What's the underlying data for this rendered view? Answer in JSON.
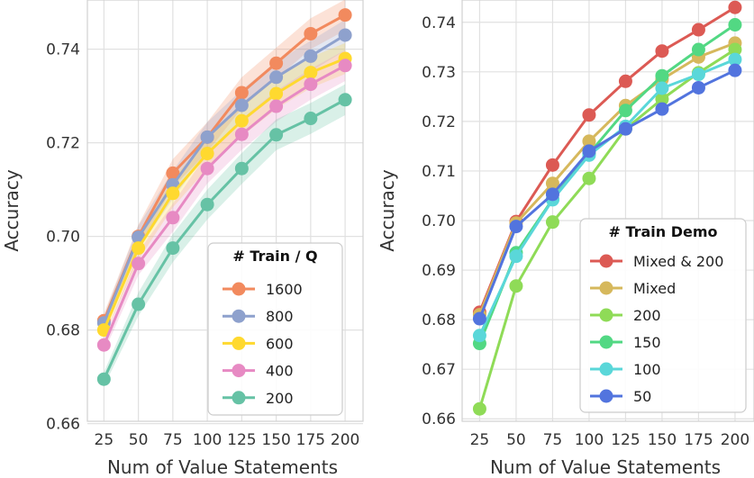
{
  "chart_data": [
    {
      "type": "line",
      "title": "",
      "xlabel": "Num of Value Statements",
      "ylabel": "Accuracy",
      "categories": [
        25,
        50,
        75,
        100,
        125,
        150,
        175,
        200
      ],
      "xlim": [
        13,
        213
      ],
      "ylim": [
        0.6605,
        0.7505
      ],
      "yticks": [
        0.66,
        0.68,
        0.7,
        0.72,
        0.74
      ],
      "ytick_labels": [
        "0.66",
        "0.68",
        "0.70",
        "0.72",
        "0.74"
      ],
      "xtick_labels": [
        "25",
        "50",
        "75",
        "100",
        "125",
        "150",
        "175",
        "200"
      ],
      "legend_title": "# Train / Q",
      "legend_position": "lower-right",
      "confidence_band": true,
      "series": [
        {
          "name": "1600",
          "color": "#f28a5e",
          "values": [
            0.682,
            0.7,
            0.7135,
            0.7212,
            0.7307,
            0.737,
            0.7433,
            0.7473
          ],
          "band": [
            0.0015,
            0.0025,
            0.003,
            0.0032,
            0.0033,
            0.0033,
            0.0033,
            0.0033
          ]
        },
        {
          "name": "800",
          "color": "#8ea1cd",
          "values": [
            0.6815,
            0.6998,
            0.711,
            0.7212,
            0.728,
            0.734,
            0.7385,
            0.743
          ],
          "band": [
            0.0015,
            0.0025,
            0.003,
            0.0032,
            0.0033,
            0.0033,
            0.0033,
            0.0033
          ]
        },
        {
          "name": "600",
          "color": "#ffd92f",
          "values": [
            0.68,
            0.6975,
            0.7092,
            0.7177,
            0.7247,
            0.7305,
            0.735,
            0.738
          ],
          "band": [
            0.0015,
            0.0025,
            0.003,
            0.0032,
            0.0033,
            0.0033,
            0.0033,
            0.0033
          ]
        },
        {
          "name": "400",
          "color": "#e78ac3",
          "values": [
            0.6768,
            0.6942,
            0.704,
            0.7145,
            0.7218,
            0.7278,
            0.7325,
            0.7365
          ],
          "band": [
            0.0015,
            0.0025,
            0.003,
            0.0032,
            0.0033,
            0.0033,
            0.0033,
            0.0033
          ]
        },
        {
          "name": "200",
          "color": "#66c2a5",
          "values": [
            0.6695,
            0.6855,
            0.6975,
            0.7068,
            0.7145,
            0.7217,
            0.7252,
            0.7292
          ],
          "band": [
            0.0015,
            0.0025,
            0.003,
            0.0032,
            0.0033,
            0.0033,
            0.0033,
            0.0033
          ]
        }
      ]
    },
    {
      "type": "line",
      "title": "",
      "xlabel": "Num of Value Statements",
      "ylabel": "Accuracy",
      "categories": [
        25,
        50,
        75,
        100,
        125,
        150,
        175,
        200
      ],
      "xlim": [
        13,
        213
      ],
      "ylim": [
        0.6595,
        0.7445
      ],
      "yticks": [
        0.66,
        0.67,
        0.68,
        0.69,
        0.7,
        0.71,
        0.72,
        0.73,
        0.74
      ],
      "ytick_labels": [
        "0.66",
        "0.67",
        "0.68",
        "0.69",
        "0.70",
        "0.71",
        "0.72",
        "0.73",
        "0.74"
      ],
      "xtick_labels": [
        "25",
        "50",
        "75",
        "100",
        "125",
        "150",
        "175",
        "200"
      ],
      "legend_title": "# Train Demo",
      "legend_position": "lower-right",
      "confidence_band": false,
      "series": [
        {
          "name": "Mixed & 200",
          "color": "#dc5a54",
          "values": [
            0.6815,
            0.6998,
            0.7112,
            0.7213,
            0.7281,
            0.7342,
            0.7385,
            0.743
          ]
        },
        {
          "name": "Mixed",
          "color": "#d6b85c",
          "values": [
            0.681,
            0.6995,
            0.7075,
            0.716,
            0.7232,
            0.7285,
            0.733,
            0.7358
          ]
        },
        {
          "name": "200",
          "color": "#8fdb57",
          "values": [
            0.662,
            0.6868,
            0.6997,
            0.7085,
            0.7185,
            0.7245,
            0.7298,
            0.7345
          ]
        },
        {
          "name": "150",
          "color": "#52d883",
          "values": [
            0.6752,
            0.6935,
            0.7043,
            0.7135,
            0.7222,
            0.7292,
            0.7345,
            0.7395
          ]
        },
        {
          "name": "100",
          "color": "#5ad7d9",
          "values": [
            0.6768,
            0.6928,
            0.7042,
            0.7132,
            0.719,
            0.7267,
            0.7295,
            0.7325
          ]
        },
        {
          "name": "50",
          "color": "#5274de",
          "values": [
            0.6802,
            0.6988,
            0.7053,
            0.714,
            0.7185,
            0.7225,
            0.7268,
            0.7303
          ]
        }
      ]
    }
  ]
}
